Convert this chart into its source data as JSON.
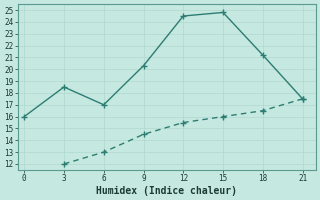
{
  "xlabel": "Humidex (Indice chaleur)",
  "line1_x": [
    0,
    3,
    6,
    9,
    12,
    15,
    18,
    21
  ],
  "line1_y": [
    16,
    18.5,
    17,
    20.3,
    24.5,
    24.8,
    21.2,
    17.5
  ],
  "line2_x": [
    3,
    6,
    9,
    12,
    15,
    18,
    21
  ],
  "line2_y": [
    12,
    13,
    14.5,
    15.5,
    16.0,
    16.5,
    17.5
  ],
  "line_color": "#2d7d72",
  "bg_color": "#c5e8e0",
  "grid_major_color": "#b0d8cf",
  "grid_minor_color": "#c0e0d8",
  "xlim": [
    -0.5,
    22
  ],
  "ylim": [
    11.5,
    25.5
  ],
  "xticks": [
    0,
    3,
    6,
    9,
    12,
    15,
    18,
    21
  ],
  "yticks": [
    12,
    13,
    14,
    15,
    16,
    17,
    18,
    19,
    20,
    21,
    22,
    23,
    24,
    25
  ],
  "markersize": 4,
  "linewidth": 1.0,
  "font_color": "#1a3a35",
  "xlabel_fontsize": 7,
  "tick_fontsize": 5.5
}
